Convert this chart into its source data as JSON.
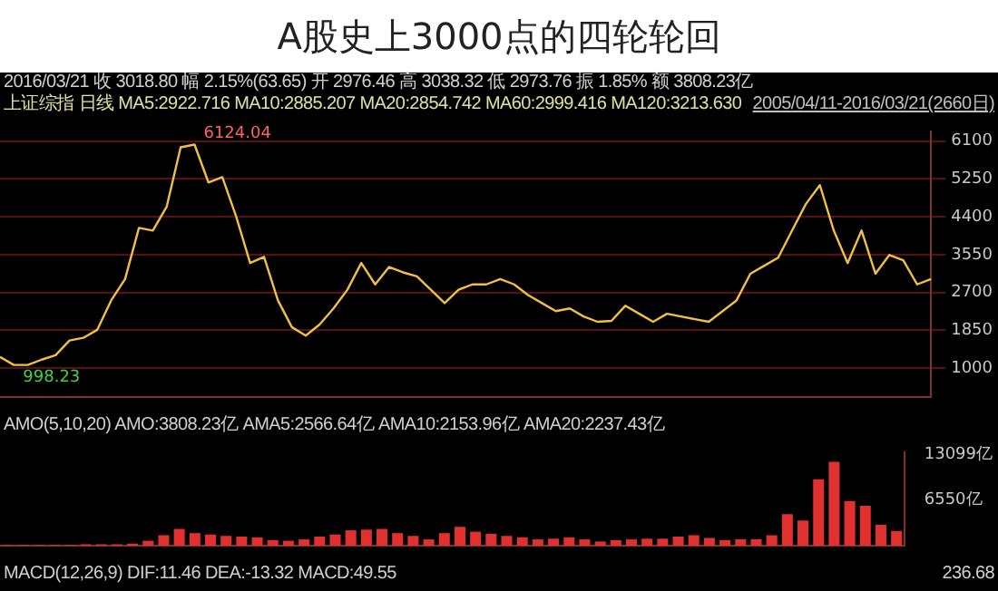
{
  "chart_data": [
    {
      "type": "line",
      "title": "A股史上3000点的四轮轮回",
      "annotations": [
        "2016/03/21 收 3018.80 幅 2.15%(63.65) 开 2976.46 高 3038.32 低 2973.76 振 1.85% 额 3808.23亿",
        "上证综指 日线 MA5:2922.716 MA10:2885.207 MA20:2854.742 MA60:2999.416 MA120:3213.630",
        "2005/04/11-2016/03/21(2660日)",
        "6124.04",
        "998.23"
      ],
      "categories": [
        null,
        null,
        null,
        null,
        null,
        null,
        null,
        null,
        null,
        null,
        null,
        null,
        null,
        null,
        null,
        null,
        null,
        null,
        null,
        null,
        null,
        null,
        null,
        null,
        null,
        null,
        null,
        null,
        null,
        null,
        null,
        null,
        null,
        null,
        null,
        null,
        null,
        null,
        null,
        null,
        null,
        null,
        null,
        null,
        null,
        null,
        null,
        null,
        null,
        null,
        null,
        null,
        null,
        null,
        null,
        null,
        null,
        null,
        null,
        null,
        null,
        null,
        null,
        null,
        null,
        null,
        null,
        null
      ],
      "series": [
        {
          "color": "#f0c040",
          "values": [
            1250,
            1070,
            1070,
            1190,
            1290,
            1620,
            1680,
            1860,
            2520,
            3000,
            4150,
            4090,
            4630,
            5960,
            6020,
            5170,
            5290,
            4400,
            3360,
            3500,
            2520,
            1920,
            1730,
            1980,
            2340,
            2760,
            3360,
            2880,
            3270,
            3150,
            3060,
            2760,
            2460,
            2760,
            2880,
            2880,
            3000,
            2880,
            2640,
            2460,
            2280,
            2340,
            2160,
            2040,
            2060,
            2400,
            2220,
            2040,
            2220,
            2160,
            2100,
            2040,
            2280,
            2520,
            3120,
            3300,
            3480,
            4090,
            4690,
            5110,
            4090,
            3360,
            4090,
            3120,
            3540,
            3420,
            2880,
            3000
          ]
        }
      ],
      "ylim": [
        350,
        6320
      ],
      "yticks": [
        1000,
        1850,
        2700,
        3550,
        4400,
        5250,
        6100
      ],
      "grid": "y",
      "tick_labels": "y"
    },
    {
      "type": "bar",
      "annotations": [
        "AMO(5,10,20) AMO:3808.23亿 AMA5:2566.64亿 AMA10:2153.96亿 AMA20:2237.43亿",
        "MACD(12,26,9) DIF:11.46 DEA:-13.32 MACD:49.55",
        "236.68"
      ],
      "categories": [
        null,
        null,
        null,
        null,
        null,
        null,
        null,
        null,
        null,
        null,
        null,
        null,
        null,
        null,
        null,
        null,
        null,
        null,
        null,
        null,
        null,
        null,
        null,
        null,
        null,
        null,
        null,
        null,
        null,
        null,
        null,
        null,
        null,
        null,
        null,
        null,
        null,
        null,
        null,
        null,
        null,
        null,
        null,
        null,
        null,
        null,
        null,
        null,
        null,
        null,
        null,
        null,
        null,
        null,
        null,
        null,
        null,
        null
      ],
      "values": [
        100,
        100,
        100,
        100,
        100,
        200,
        200,
        200,
        300,
        700,
        1500,
        2400,
        1800,
        1600,
        1400,
        1300,
        1200,
        800,
        700,
        900,
        1300,
        1600,
        2200,
        2300,
        2400,
        1800,
        1400,
        900,
        1800,
        2700,
        2000,
        1700,
        1400,
        1200,
        900,
        1000,
        1200,
        900,
        600,
        800,
        900,
        1000,
        1000,
        1300,
        1500,
        1100,
        800,
        900,
        900,
        1500,
        4500,
        3600,
        9500,
        12000,
        6400,
        5700,
        3000,
        2100
      ],
      "color": "#e03030",
      "ylim": [
        0,
        13400
      ],
      "yticks": [
        {
          "value": 6550,
          "label": "6550亿"
        },
        {
          "value": 13099,
          "label": "13099亿"
        }
      ],
      "tick_labels": "y"
    }
  ]
}
